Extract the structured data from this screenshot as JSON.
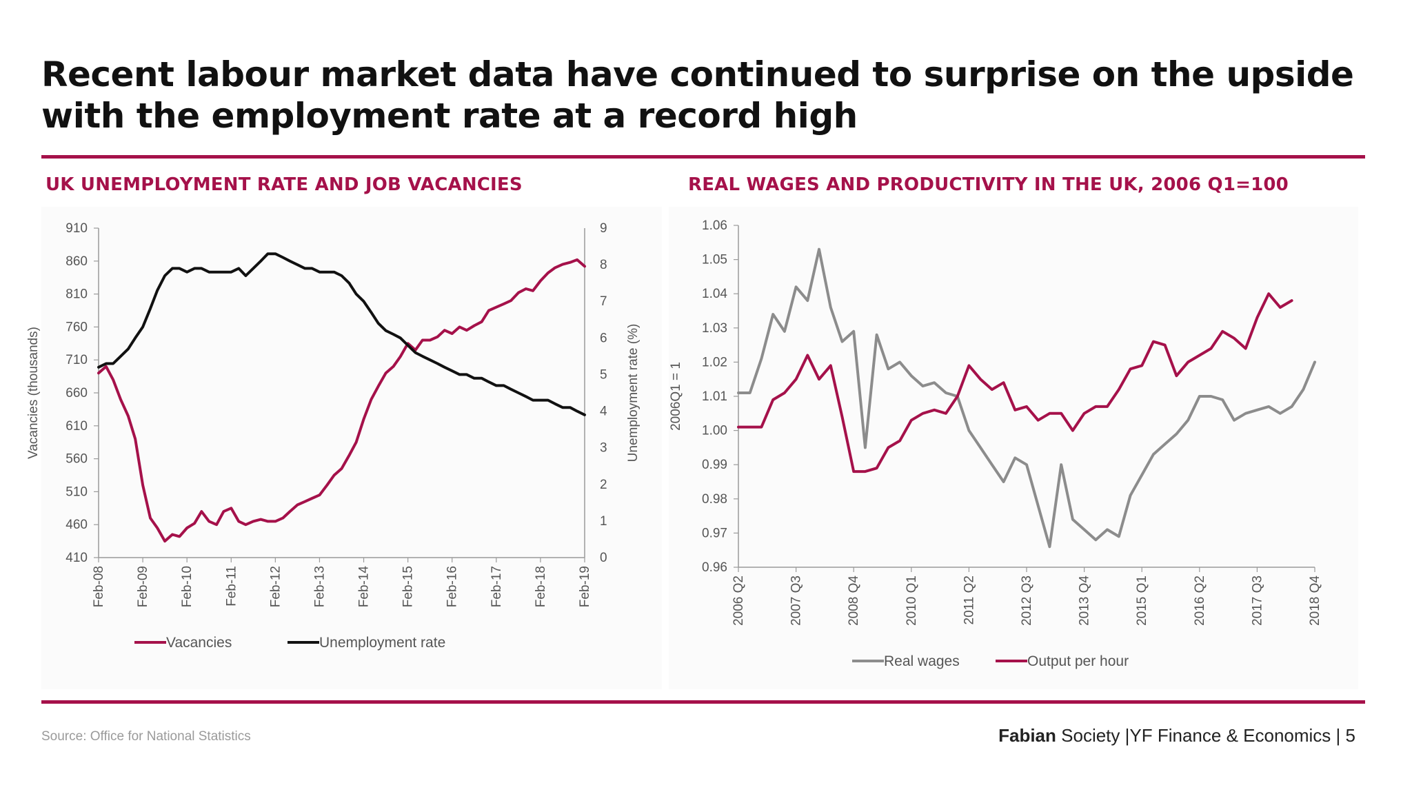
{
  "headline": "Recent labour market data have continued to surprise on the upside with the employment rate at a record high",
  "source": "Source: Office for National Statistics",
  "footer": {
    "org_bold": "Fabian",
    "org_rest": "Society",
    "separator1": "|",
    "dept": "YF Finance & Economics",
    "separator2": "|",
    "page": "5"
  },
  "colors": {
    "brand": "#a5114a",
    "black_series": "#111111",
    "grey_series": "#8c8c8c"
  },
  "chart_data": [
    {
      "type": "line",
      "title": "UK UNEMPLOYMENT RATE AND JOB VACANCIES",
      "ylabel": "Vacancies (thousands)",
      "y2label": "Unemployment rate (%)",
      "ylim": [
        410,
        910
      ],
      "y2lim": [
        0,
        9
      ],
      "yticks": [
        "410",
        "460",
        "510",
        "560",
        "610",
        "660",
        "710",
        "760",
        "810",
        "860",
        "910"
      ],
      "y2ticks": [
        "0",
        "1",
        "2",
        "3",
        "4",
        "5",
        "6",
        "7",
        "8",
        "9"
      ],
      "xticks": [
        "Feb-08",
        "Feb-09",
        "Feb-10",
        "Feb-11",
        "Feb-12",
        "Feb-13",
        "Feb-14",
        "Feb-15",
        "Feb-16",
        "Feb-17",
        "Feb-18",
        "Feb-19"
      ],
      "xlim": [
        2008.0,
        2019.0
      ],
      "legend_position": "bottom",
      "series": [
        {
          "name": "Vacancies",
          "axis": "left",
          "color": "#a5114a",
          "x": [
            2008.0,
            2008.17,
            2008.33,
            2008.5,
            2008.67,
            2008.83,
            2009.0,
            2009.17,
            2009.33,
            2009.5,
            2009.67,
            2009.83,
            2010.0,
            2010.17,
            2010.33,
            2010.5,
            2010.67,
            2010.83,
            2011.0,
            2011.17,
            2011.33,
            2011.5,
            2011.67,
            2011.83,
            2012.0,
            2012.17,
            2012.33,
            2012.5,
            2012.67,
            2012.83,
            2013.0,
            2013.17,
            2013.33,
            2013.5,
            2013.67,
            2013.83,
            2014.0,
            2014.17,
            2014.33,
            2014.5,
            2014.67,
            2014.83,
            2015.0,
            2015.17,
            2015.33,
            2015.5,
            2015.67,
            2015.83,
            2016.0,
            2016.17,
            2016.33,
            2016.5,
            2016.67,
            2016.83,
            2017.0,
            2017.17,
            2017.33,
            2017.5,
            2017.67,
            2017.83,
            2018.0,
            2018.17,
            2018.33,
            2018.5,
            2018.67,
            2018.83,
            2019.0
          ],
          "y": [
            690,
            700,
            680,
            650,
            625,
            590,
            520,
            470,
            455,
            435,
            445,
            442,
            455,
            462,
            480,
            465,
            460,
            480,
            485,
            465,
            460,
            465,
            468,
            465,
            465,
            470,
            480,
            490,
            495,
            500,
            505,
            520,
            535,
            545,
            565,
            585,
            620,
            650,
            670,
            690,
            700,
            715,
            735,
            725,
            740,
            740,
            745,
            755,
            750,
            760,
            755,
            762,
            768,
            785,
            790,
            795,
            800,
            812,
            818,
            815,
            830,
            842,
            850,
            855,
            858,
            862,
            852
          ]
        },
        {
          "name": "Unemployment rate",
          "axis": "right",
          "color": "#111111",
          "x": [
            2008.0,
            2008.17,
            2008.33,
            2008.5,
            2008.67,
            2008.83,
            2009.0,
            2009.17,
            2009.33,
            2009.5,
            2009.67,
            2009.83,
            2010.0,
            2010.17,
            2010.33,
            2010.5,
            2010.67,
            2010.83,
            2011.0,
            2011.17,
            2011.33,
            2011.5,
            2011.67,
            2011.83,
            2012.0,
            2012.17,
            2012.33,
            2012.5,
            2012.67,
            2012.83,
            2013.0,
            2013.17,
            2013.33,
            2013.5,
            2013.67,
            2013.83,
            2014.0,
            2014.17,
            2014.33,
            2014.5,
            2014.67,
            2014.83,
            2015.0,
            2015.17,
            2015.33,
            2015.5,
            2015.67,
            2015.83,
            2016.0,
            2016.17,
            2016.33,
            2016.5,
            2016.67,
            2016.83,
            2017.0,
            2017.17,
            2017.33,
            2017.5,
            2017.67,
            2017.83,
            2018.0,
            2018.17,
            2018.33,
            2018.5,
            2018.67,
            2018.83,
            2019.0
          ],
          "y": [
            5.2,
            5.3,
            5.3,
            5.5,
            5.7,
            6.0,
            6.3,
            6.8,
            7.3,
            7.7,
            7.9,
            7.9,
            7.8,
            7.9,
            7.9,
            7.8,
            7.8,
            7.8,
            7.8,
            7.9,
            7.7,
            7.9,
            8.1,
            8.3,
            8.3,
            8.2,
            8.1,
            8.0,
            7.9,
            7.9,
            7.8,
            7.8,
            7.8,
            7.7,
            7.5,
            7.2,
            7.0,
            6.7,
            6.4,
            6.2,
            6.1,
            6.0,
            5.8,
            5.6,
            5.5,
            5.4,
            5.3,
            5.2,
            5.1,
            5.0,
            5.0,
            4.9,
            4.9,
            4.8,
            4.7,
            4.7,
            4.6,
            4.5,
            4.4,
            4.3,
            4.3,
            4.3,
            4.2,
            4.1,
            4.1,
            4.0,
            3.9
          ]
        }
      ]
    },
    {
      "type": "line",
      "title": "REAL WAGES AND PRODUCTIVITY IN THE UK, 2006 Q1=100",
      "ylabel": "2006Q1 = 1",
      "ylim": [
        0.96,
        1.06
      ],
      "yticks": [
        "0.96",
        "0.97",
        "0.98",
        "0.99",
        "1.00",
        "1.01",
        "1.02",
        "1.03",
        "1.04",
        "1.05",
        "1.06"
      ],
      "xticks": [
        "2006 Q2",
        "2007 Q3",
        "2008 Q4",
        "2010 Q1",
        "2011 Q2",
        "2012 Q3",
        "2013 Q4",
        "2015 Q1",
        "2016 Q2",
        "2017 Q3",
        "2018 Q4"
      ],
      "xlim": [
        2006.25,
        2018.75
      ],
      "legend_position": "bottom",
      "series": [
        {
          "name": "Real wages",
          "color": "#8c8c8c",
          "x": [
            2006.25,
            2006.5,
            2006.75,
            2007.0,
            2007.25,
            2007.5,
            2007.75,
            2008.0,
            2008.25,
            2008.5,
            2008.75,
            2009.0,
            2009.25,
            2009.5,
            2009.75,
            2010.0,
            2010.25,
            2010.5,
            2010.75,
            2011.0,
            2011.25,
            2011.5,
            2011.75,
            2012.0,
            2012.25,
            2012.5,
            2012.75,
            2013.0,
            2013.25,
            2013.5,
            2013.75,
            2014.0,
            2014.25,
            2014.5,
            2014.75,
            2015.0,
            2015.25,
            2015.5,
            2015.75,
            2016.0,
            2016.25,
            2016.5,
            2016.75,
            2017.0,
            2017.25,
            2017.5,
            2017.75,
            2018.0,
            2018.25,
            2018.5,
            2018.75
          ],
          "y": [
            1.011,
            1.011,
            1.021,
            1.034,
            1.029,
            1.042,
            1.038,
            1.053,
            1.036,
            1.026,
            1.029,
            0.995,
            1.028,
            1.018,
            1.02,
            1.016,
            1.013,
            1.014,
            1.011,
            1.01,
            1.0,
            0.995,
            0.99,
            0.985,
            0.992,
            0.99,
            0.978,
            0.966,
            0.99,
            0.974,
            0.971,
            0.968,
            0.971,
            0.969,
            0.981,
            0.987,
            0.993,
            0.996,
            0.999,
            1.003,
            1.01,
            1.01,
            1.009,
            1.003,
            1.005,
            1.006,
            1.007,
            1.005,
            1.007,
            1.012,
            1.02
          ]
        },
        {
          "name": "Output per hour",
          "color": "#a5114a",
          "x": [
            2006.25,
            2006.5,
            2006.75,
            2007.0,
            2007.25,
            2007.5,
            2007.75,
            2008.0,
            2008.25,
            2008.5,
            2008.75,
            2009.0,
            2009.25,
            2009.5,
            2009.75,
            2010.0,
            2010.25,
            2010.5,
            2010.75,
            2011.0,
            2011.25,
            2011.5,
            2011.75,
            2012.0,
            2012.25,
            2012.5,
            2012.75,
            2013.0,
            2013.25,
            2013.5,
            2013.75,
            2014.0,
            2014.25,
            2014.5,
            2014.75,
            2015.0,
            2015.25,
            2015.5,
            2015.75,
            2016.0,
            2016.25,
            2016.5,
            2016.75,
            2017.0,
            2017.25,
            2017.5,
            2017.75,
            2018.0,
            2018.25
          ],
          "y": [
            1.001,
            1.001,
            1.001,
            1.009,
            1.011,
            1.015,
            1.022,
            1.015,
            1.019,
            1.004,
            0.988,
            0.988,
            0.989,
            0.995,
            0.997,
            1.003,
            1.005,
            1.006,
            1.005,
            1.01,
            1.019,
            1.015,
            1.012,
            1.014,
            1.006,
            1.007,
            1.003,
            1.005,
            1.005,
            1.0,
            1.005,
            1.007,
            1.007,
            1.012,
            1.018,
            1.019,
            1.026,
            1.025,
            1.016,
            1.02,
            1.022,
            1.024,
            1.029,
            1.027,
            1.024,
            1.033,
            1.04,
            1.036,
            1.038
          ]
        }
      ]
    }
  ]
}
